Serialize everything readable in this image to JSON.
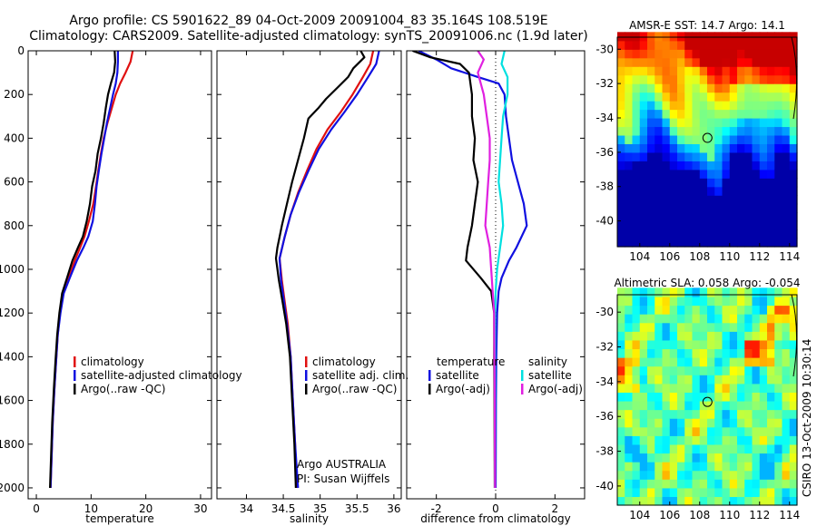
{
  "header": {
    "line1": "Argo profile: CS 5901622_89 04-Oct-2009 20091004_83 35.164S 108.519E",
    "line2": "Climatology: CARS2009. Satellite-adjusted climatology: synTS_20091006.nc (1.9d later)"
  },
  "annotations": {
    "argo_country": "Argo AUSTRALIA",
    "pi": "PI: Susan Wijffels",
    "vertical_stamp": "CSIRO 13-Oct-2009 10:30:14"
  },
  "colors": {
    "climatology": "#e01010",
    "satellite": "#1010e0",
    "argo": "#000000",
    "sal_satellite": "#00e0e0",
    "sal_argo": "#e020e0"
  },
  "chart_data": [
    {
      "id": "temperature",
      "type": "line",
      "xlabel": "temperature",
      "xlim": [
        -1.5,
        32
      ],
      "ylim": [
        0,
        2050
      ],
      "y_inverted": true,
      "xticks": [
        0,
        10,
        20,
        30
      ],
      "yticks": [
        0,
        200,
        400,
        600,
        800,
        1000,
        1200,
        1400,
        1600,
        1800,
        2000
      ],
      "legend": {
        "placement": "lower-right",
        "entries": [
          "climatology",
          "satellite-adjusted climatology",
          "Argo(..raw -QC)"
        ]
      },
      "series": [
        {
          "name": "climatology",
          "color": "#e01010",
          "points": [
            [
              17.6,
              0
            ],
            [
              17.2,
              50
            ],
            [
              16.3,
              100
            ],
            [
              15.3,
              150
            ],
            [
              14.5,
              200
            ],
            [
              13.8,
              260
            ],
            [
              13.0,
              330
            ],
            [
              12.3,
              400
            ],
            [
              11.8,
              470
            ],
            [
              11.3,
              550
            ],
            [
              10.9,
              620
            ],
            [
              10.4,
              700
            ],
            [
              9.6,
              780
            ],
            [
              8.8,
              850
            ],
            [
              8.0,
              900
            ],
            [
              7.0,
              960
            ],
            [
              5.9,
              1040
            ],
            [
              4.9,
              1110
            ],
            [
              4.3,
              1200
            ],
            [
              3.9,
              1300
            ],
            [
              3.6,
              1420
            ],
            [
              3.3,
              1550
            ],
            [
              3.0,
              1700
            ],
            [
              2.8,
              1850
            ],
            [
              2.6,
              2000
            ]
          ]
        },
        {
          "name": "satellite-adjusted climatology",
          "color": "#1010e0",
          "points": [
            [
              14.9,
              0
            ],
            [
              14.9,
              50
            ],
            [
              14.8,
              100
            ],
            [
              14.5,
              150
            ],
            [
              14.0,
              200
            ],
            [
              13.5,
              260
            ],
            [
              12.9,
              330
            ],
            [
              12.4,
              400
            ],
            [
              11.9,
              470
            ],
            [
              11.4,
              550
            ],
            [
              11.0,
              620
            ],
            [
              10.7,
              700
            ],
            [
              10.3,
              780
            ],
            [
              9.5,
              850
            ],
            [
              8.6,
              900
            ],
            [
              7.4,
              960
            ],
            [
              6.1,
              1040
            ],
            [
              5.0,
              1110
            ],
            [
              4.4,
              1200
            ],
            [
              3.9,
              1300
            ],
            [
              3.6,
              1420
            ],
            [
              3.3,
              1550
            ],
            [
              3.0,
              1700
            ],
            [
              2.8,
              1850
            ],
            [
              2.6,
              2000
            ]
          ]
        },
        {
          "name": "Argo(..raw -QC)",
          "color": "#000000",
          "points": [
            [
              14.3,
              0
            ],
            [
              14.4,
              50
            ],
            [
              14.2,
              100
            ],
            [
              13.6,
              150
            ],
            [
              13.1,
              200
            ],
            [
              12.7,
              260
            ],
            [
              12.3,
              330
            ],
            [
              11.8,
              400
            ],
            [
              11.2,
              470
            ],
            [
              10.8,
              550
            ],
            [
              10.2,
              620
            ],
            [
              9.8,
              700
            ],
            [
              9.2,
              780
            ],
            [
              8.5,
              850
            ],
            [
              7.6,
              900
            ],
            [
              6.6,
              960
            ],
            [
              5.6,
              1040
            ],
            [
              4.7,
              1110
            ],
            [
              4.2,
              1200
            ],
            [
              3.8,
              1300
            ],
            [
              3.5,
              1420
            ],
            [
              3.2,
              1550
            ],
            [
              2.9,
              1700
            ],
            [
              2.7,
              1850
            ],
            [
              2.5,
              2000
            ]
          ]
        }
      ]
    },
    {
      "id": "salinity",
      "type": "line",
      "xlabel": "salinity",
      "xlim": [
        33.6,
        36.1
      ],
      "ylim": [
        0,
        2050
      ],
      "y_inverted": true,
      "xticks": [
        34,
        34.5,
        35,
        35.5,
        36
      ],
      "legend": {
        "placement": "lower-right",
        "entries": [
          "climatology",
          "satellite adj. clim.",
          "Argo(..raw -QC)"
        ]
      },
      "series": [
        {
          "name": "climatology",
          "color": "#e01010",
          "points": [
            [
              35.72,
              0
            ],
            [
              35.68,
              60
            ],
            [
              35.58,
              120
            ],
            [
              35.44,
              200
            ],
            [
              35.28,
              280
            ],
            [
              35.1,
              360
            ],
            [
              34.95,
              450
            ],
            [
              34.82,
              550
            ],
            [
              34.7,
              650
            ],
            [
              34.6,
              750
            ],
            [
              34.52,
              850
            ],
            [
              34.45,
              950
            ],
            [
              34.48,
              1050
            ],
            [
              34.52,
              1150
            ],
            [
              34.56,
              1250
            ],
            [
              34.6,
              1400
            ],
            [
              34.63,
              1600
            ],
            [
              34.66,
              1800
            ],
            [
              34.68,
              2000
            ]
          ]
        },
        {
          "name": "satellite adj. clim.",
          "color": "#1010e0",
          "points": [
            [
              35.8,
              0
            ],
            [
              35.76,
              60
            ],
            [
              35.65,
              120
            ],
            [
              35.5,
              200
            ],
            [
              35.33,
              280
            ],
            [
              35.15,
              360
            ],
            [
              34.98,
              450
            ],
            [
              34.84,
              550
            ],
            [
              34.71,
              650
            ],
            [
              34.6,
              750
            ],
            [
              34.52,
              850
            ],
            [
              34.45,
              950
            ],
            [
              34.47,
              1050
            ],
            [
              34.51,
              1150
            ],
            [
              34.55,
              1250
            ],
            [
              34.6,
              1400
            ],
            [
              34.63,
              1600
            ],
            [
              34.66,
              1800
            ],
            [
              34.7,
              2000
            ]
          ]
        },
        {
          "name": "Argo(..raw -QC)",
          "color": "#000000",
          "points": [
            [
              35.55,
              0
            ],
            [
              35.6,
              30
            ],
            [
              35.45,
              80
            ],
            [
              35.38,
              120
            ],
            [
              35.26,
              160
            ],
            [
              35.08,
              220
            ],
            [
              34.98,
              260
            ],
            [
              34.84,
              310
            ],
            [
              34.78,
              400
            ],
            [
              34.7,
              500
            ],
            [
              34.62,
              600
            ],
            [
              34.55,
              700
            ],
            [
              34.48,
              800
            ],
            [
              34.42,
              900
            ],
            [
              34.4,
              950
            ],
            [
              34.44,
              1050
            ],
            [
              34.49,
              1150
            ],
            [
              34.54,
              1250
            ],
            [
              34.59,
              1400
            ],
            [
              34.62,
              1600
            ],
            [
              34.65,
              1800
            ],
            [
              34.67,
              2000
            ]
          ]
        }
      ]
    },
    {
      "id": "difference",
      "type": "line",
      "xlabel": "difference from climatology",
      "xlim": [
        -3.0,
        3.0
      ],
      "ylim": [
        0,
        2050
      ],
      "y_inverted": true,
      "xticks": [
        -2,
        0,
        2
      ],
      "legend": {
        "placement": "lower",
        "entries": [
          "temperature",
          "satellite",
          "Argo(-adj)",
          "salinity",
          "satellite",
          "Argo(-adj)"
        ]
      },
      "series": [
        {
          "name": "satellite",
          "group": "temperature",
          "color": "#1010e0",
          "points": [
            [
              -2.6,
              0
            ],
            [
              -2.0,
              40
            ],
            [
              -1.5,
              80
            ],
            [
              -0.6,
              120
            ],
            [
              0.1,
              150
            ],
            [
              0.3,
              200
            ],
            [
              0.35,
              300
            ],
            [
              0.45,
              400
            ],
            [
              0.55,
              500
            ],
            [
              0.75,
              600
            ],
            [
              0.95,
              700
            ],
            [
              1.05,
              800
            ],
            [
              0.7,
              900
            ],
            [
              0.45,
              960
            ],
            [
              0.2,
              1040
            ],
            [
              0.1,
              1100
            ],
            [
              0.05,
              1200
            ],
            [
              0.02,
              1400
            ],
            [
              0.01,
              1600
            ],
            [
              0.0,
              2000
            ]
          ]
        },
        {
          "name": "Argo(-adj)",
          "group": "temperature",
          "color": "#000000",
          "points": [
            [
              -2.8,
              0
            ],
            [
              -2.2,
              30
            ],
            [
              -1.2,
              60
            ],
            [
              -0.9,
              100
            ],
            [
              -0.8,
              200
            ],
            [
              -0.8,
              300
            ],
            [
              -0.7,
              400
            ],
            [
              -0.75,
              500
            ],
            [
              -0.6,
              600
            ],
            [
              -0.7,
              700
            ],
            [
              -0.8,
              800
            ],
            [
              -0.95,
              900
            ],
            [
              -1.0,
              960
            ],
            [
              -0.5,
              1040
            ],
            [
              -0.15,
              1100
            ],
            [
              -0.05,
              1200
            ],
            [
              -0.05,
              1400
            ],
            [
              -0.04,
              1600
            ],
            [
              -0.03,
              2000
            ]
          ]
        },
        {
          "name": "satellite",
          "group": "salinity",
          "color": "#00e0e0",
          "points": [
            [
              0.3,
              0
            ],
            [
              0.2,
              60
            ],
            [
              0.4,
              120
            ],
            [
              0.4,
              200
            ],
            [
              0.25,
              300
            ],
            [
              0.2,
              400
            ],
            [
              0.15,
              500
            ],
            [
              0.1,
              600
            ],
            [
              0.2,
              700
            ],
            [
              0.25,
              800
            ],
            [
              0.15,
              900
            ],
            [
              0.05,
              1000
            ],
            [
              0.0,
              1100
            ],
            [
              -0.02,
              1200
            ],
            [
              -0.02,
              1400
            ],
            [
              -0.02,
              1600
            ],
            [
              -0.02,
              2000
            ]
          ]
        },
        {
          "name": "Argo(-adj)",
          "group": "salinity",
          "color": "#e020e0",
          "points": [
            [
              -0.6,
              0
            ],
            [
              -0.4,
              40
            ],
            [
              -0.6,
              100
            ],
            [
              -0.4,
              200
            ],
            [
              -0.3,
              300
            ],
            [
              -0.2,
              400
            ],
            [
              -0.2,
              500
            ],
            [
              -0.25,
              600
            ],
            [
              -0.3,
              700
            ],
            [
              -0.35,
              800
            ],
            [
              -0.2,
              900
            ],
            [
              -0.15,
              1000
            ],
            [
              -0.1,
              1100
            ],
            [
              -0.05,
              1200
            ],
            [
              -0.04,
              1400
            ],
            [
              -0.03,
              1600
            ],
            [
              -0.02,
              2000
            ]
          ]
        }
      ]
    },
    {
      "id": "sst_map",
      "type": "heatmap",
      "title": "AMSR-E SST: 14.7 Argo: 14.1",
      "xlim": [
        102.5,
        114.5
      ],
      "ylim": [
        -41.5,
        -29.3
      ],
      "xticks": [
        104,
        106,
        108,
        110,
        112,
        114
      ],
      "yticks": [
        -30,
        -32,
        -34,
        -36,
        -38,
        -40
      ],
      "colormap": "jet",
      "marker": {
        "lon": 108.519,
        "lat": -35.164
      },
      "value_range": [
        11,
        19
      ]
    },
    {
      "id": "sla_map",
      "type": "heatmap",
      "title": "Altimetric SLA: 0.058 Argo: -0.054",
      "xlim": [
        102.5,
        114.5
      ],
      "ylim": [
        -41.1,
        -29.0
      ],
      "xticks": [
        104,
        106,
        108,
        110,
        112,
        114
      ],
      "yticks": [
        -30,
        -32,
        -34,
        -36,
        -38,
        -40
      ],
      "colormap": "jet",
      "marker": {
        "lon": 108.519,
        "lat": -35.164
      },
      "value_range": [
        -0.3,
        0.3
      ]
    }
  ]
}
